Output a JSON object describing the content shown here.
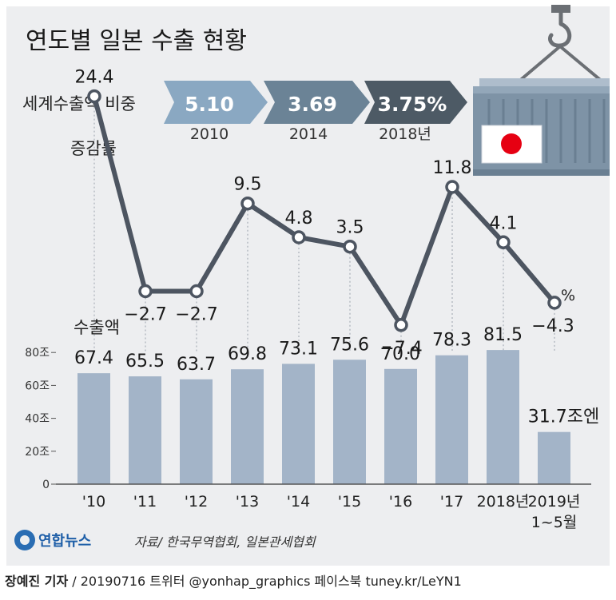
{
  "title": "연도별 일본 수출 현황",
  "share": {
    "label": "세계수출액 비중",
    "items": [
      {
        "value": "5.10",
        "year": "2010"
      },
      {
        "value": "3.69",
        "year": "2014"
      },
      {
        "value": "3.75%",
        "year": "2018년"
      }
    ]
  },
  "colors": {
    "panel": "#edeef0",
    "line": "#4d5561",
    "bar": "#a3b4c8",
    "arrow1": "#8aa8c2",
    "arrow2": "#6b8396",
    "arrow3": "#4d5a65",
    "container": "#7e93a6",
    "flag_red": "#e60012"
  },
  "icon": "cargo-container-japan-flag-icon",
  "chart_data": [
    {
      "type": "line",
      "title": "증감률",
      "x": [
        "'10",
        "'11",
        "'12",
        "'13",
        "'14",
        "'15",
        "'16",
        "'17",
        "2018년",
        "2019년 1~5월"
      ],
      "values": [
        24.4,
        -2.7,
        -2.7,
        9.5,
        4.8,
        3.5,
        -7.4,
        11.8,
        4.1,
        -4.3
      ],
      "labels": [
        "24.4",
        "−2.7",
        "−2.7",
        "9.5",
        "4.8",
        "3.5",
        "−7.4",
        "11.8",
        "4.1",
        "−4.3"
      ],
      "unit": "%"
    },
    {
      "type": "bar",
      "title": "수출액",
      "categories": [
        "'10",
        "'11",
        "'12",
        "'13",
        "'14",
        "'15",
        "'16",
        "'17",
        "2018년",
        "2019년 1~5월"
      ],
      "category_labels": [
        [
          "'10"
        ],
        [
          "'11"
        ],
        [
          "'12"
        ],
        [
          "'13"
        ],
        [
          "'14"
        ],
        [
          "'15"
        ],
        [
          "'16"
        ],
        [
          "'17"
        ],
        [
          "2018년"
        ],
        [
          "2019년",
          "1~5월"
        ]
      ],
      "values": [
        67.4,
        65.5,
        63.7,
        69.8,
        73.1,
        75.6,
        70.0,
        78.3,
        81.5,
        31.7
      ],
      "labels": [
        "67.4",
        "65.5",
        "63.7",
        "69.8",
        "73.1",
        "75.6",
        "70.0",
        "78.3",
        "81.5",
        "31.7"
      ],
      "last_label_suffix": "조엔",
      "yticks": [
        "0",
        "20조",
        "40조",
        "60조",
        "80조"
      ],
      "ylim": [
        0,
        80
      ]
    }
  ],
  "logo": {
    "text": "연합뉴스"
  },
  "source": "자료/ 한국무역협회, 일본관세협회",
  "footer": {
    "reporter": "장예진 기자",
    "rest": " / 20190716 트위터 @yonhap_graphics  페이스북 tuney.kr/LeYN1"
  }
}
